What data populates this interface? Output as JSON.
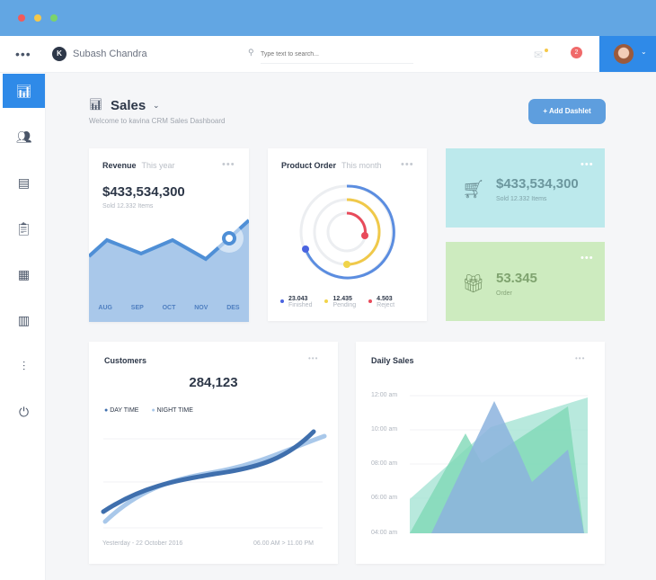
{
  "header": {
    "user_initial": "K",
    "user_name": "Subash Chandra",
    "search_placeholder": "Type text to search...",
    "notification_count": "2"
  },
  "sidebar": {
    "items": [
      "analytics",
      "users",
      "documents",
      "clipboard",
      "calendar",
      "reports",
      "settings-sliders",
      "power"
    ]
  },
  "page": {
    "title": "Sales",
    "subtitle": "Welcome to kavina CRM Sales Dashboard",
    "add_button": "+ Add Dashlet"
  },
  "revenue": {
    "title": "Revenue",
    "period": "This year",
    "amount": "$433,534,300",
    "sold": "Sold 12.332 Items",
    "months": [
      "AUG",
      "SEP",
      "OCT",
      "NOV",
      "DES"
    ]
  },
  "product_order": {
    "title": "Product Order",
    "period": "This month",
    "legend": [
      {
        "value": "23.043",
        "label": "Finished",
        "color": "#4a64e0"
      },
      {
        "value": "12.435",
        "label": "Pending",
        "color": "#f2d44a"
      },
      {
        "value": "4.503",
        "label": "Reject",
        "color": "#e84a5a"
      }
    ]
  },
  "sales_tile": {
    "amount": "$433,534,300",
    "sub": "Sold 12.332 Items",
    "color": "#bce9ec"
  },
  "order_tile": {
    "amount": "53.345",
    "sub": "Order",
    "color": "#cdebbf"
  },
  "customers": {
    "title": "Customers",
    "total": "284,123",
    "legend": [
      "DAY TIME",
      "NIGHT TIME"
    ],
    "date": "Yesterday - 22 October 2016",
    "time_range": "06.00 AM > 11.00 PM"
  },
  "daily_sales": {
    "title": "Daily Sales",
    "y_ticks": [
      "12:00 am",
      "10:00 am",
      "08:00 am",
      "06:00 am",
      "04:00 am"
    ]
  }
}
